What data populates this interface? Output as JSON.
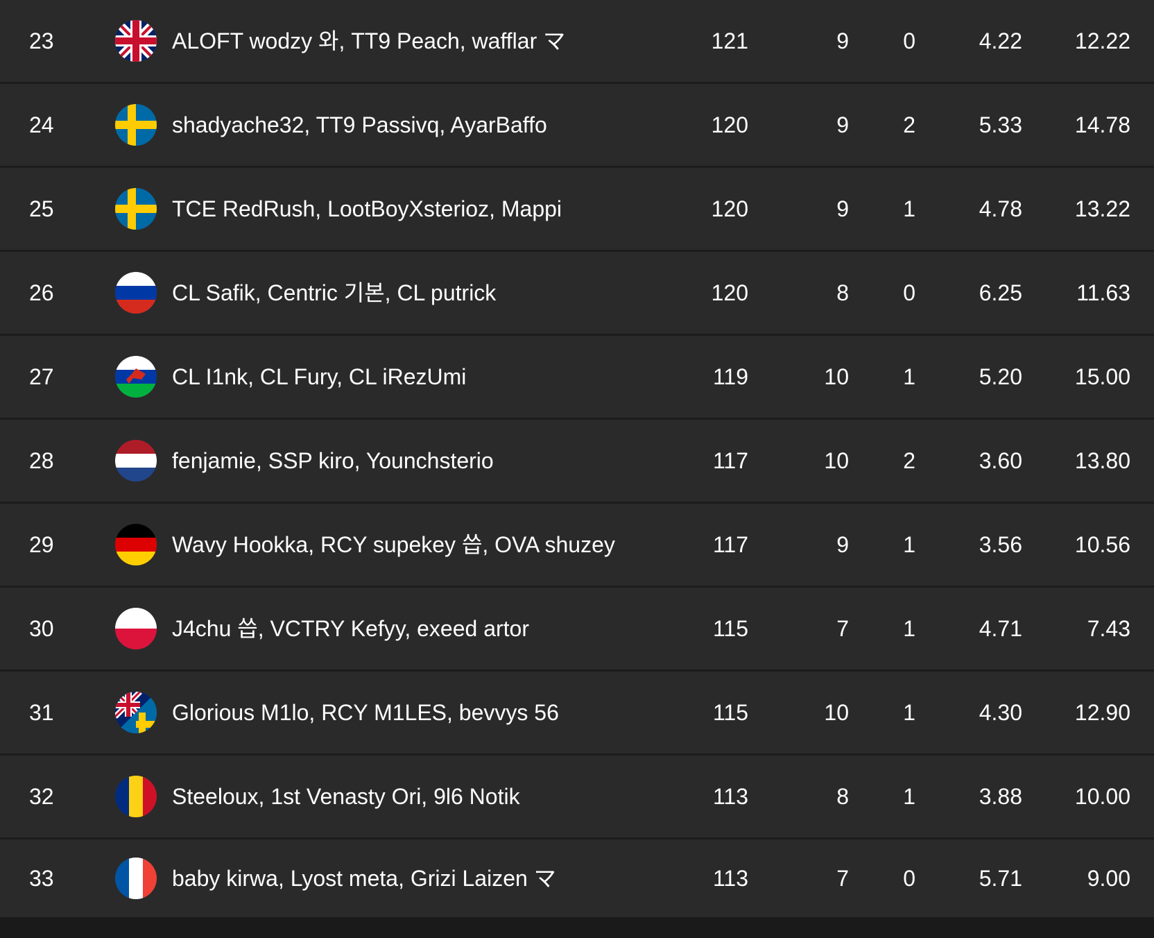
{
  "rows": [
    {
      "rank": "23",
      "flag": "flag-uk-icon",
      "names": "ALOFT wodzy 와, TT9 Peach, wafflar マ",
      "points": "121",
      "kills": "9",
      "wins": "0",
      "kd": "4.22",
      "avg": "12.22"
    },
    {
      "rank": "24",
      "flag": "flag-sweden-icon",
      "names": "shadyache32, TT9 Passivq, AyarBaffo",
      "points": "120",
      "kills": "9",
      "wins": "2",
      "kd": "5.33",
      "avg": "14.78"
    },
    {
      "rank": "25",
      "flag": "flag-sweden-icon",
      "names": "TCE RedRush, LootBoyXsterioz, Mappi",
      "points": "120",
      "kills": "9",
      "wins": "1",
      "kd": "4.78",
      "avg": "13.22"
    },
    {
      "rank": "26",
      "flag": "flag-russia-icon",
      "names": "CL Safik, Centric 기본, CL putrick",
      "points": "120",
      "kills": "8",
      "wins": "0",
      "kd": "6.25",
      "avg": "11.63"
    },
    {
      "rank": "27",
      "flag": "flag-mixed-icon",
      "names": "CL I1nk, CL Fury, CL iRezUmi",
      "points": "119",
      "kills": "10",
      "wins": "1",
      "kd": "5.20",
      "avg": "15.00"
    },
    {
      "rank": "28",
      "flag": "flag-netherlands-icon",
      "names": "fenjamie, SSP kiro, Younchsterio",
      "points": "117",
      "kills": "10",
      "wins": "2",
      "kd": "3.60",
      "avg": "13.80"
    },
    {
      "rank": "29",
      "flag": "flag-germany-icon",
      "names": "Wavy Hookka, RCY supekey 씁, OVA shuzey",
      "points": "117",
      "kills": "9",
      "wins": "1",
      "kd": "3.56",
      "avg": "10.56"
    },
    {
      "rank": "30",
      "flag": "flag-poland-icon",
      "names": "J4chu 씁, VCTRY Kefyy, exeed artor",
      "points": "115",
      "kills": "7",
      "wins": "1",
      "kd": "4.71",
      "avg": "7.43"
    },
    {
      "rank": "31",
      "flag": "flag-uk-sweden-icon",
      "names": "Glorious M1lo, RCY M1LES, bevvys 56",
      "points": "115",
      "kills": "10",
      "wins": "1",
      "kd": "4.30",
      "avg": "12.90"
    },
    {
      "rank": "32",
      "flag": "flag-romania-icon",
      "names": "Steeloux, 1st Venasty Ori, 9l6 Notik",
      "points": "113",
      "kills": "8",
      "wins": "1",
      "kd": "3.88",
      "avg": "10.00"
    },
    {
      "rank": "33",
      "flag": "flag-france-icon",
      "names": "baby kirwa, Lyost meta, Grizi Laizen マ",
      "points": "113",
      "kills": "7",
      "wins": "0",
      "kd": "5.71",
      "avg": "9.00"
    }
  ]
}
